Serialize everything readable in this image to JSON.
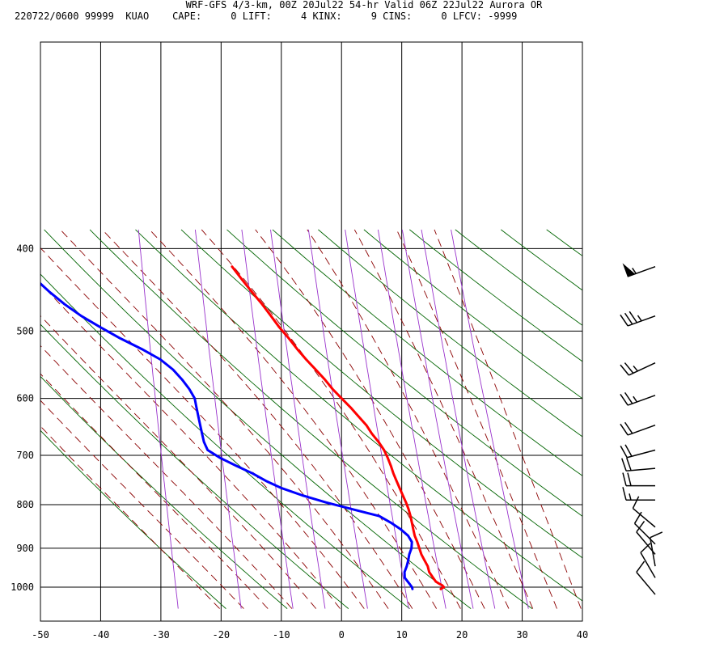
{
  "header": {
    "line1": "WRF-GFS 4/3-km, 00Z 20Jul22 54-hr Valid 06Z 22Jul22 Aurora OR",
    "line2": "220722/0600 99999  KUAO    CAPE:     0 LIFT:     4 KINX:     9 CINS:     0 LFCV: -9999"
  },
  "chart_data": {
    "type": "line",
    "title": "WRF-GFS 4/3-km, 00Z 20Jul22 54-hr Valid 06Z 22Jul22 Aurora OR",
    "xlabel": "",
    "ylabel": "",
    "xlim": [
      -50,
      40
    ],
    "ylim": [
      1040,
      400
    ],
    "x_ticks": [
      -50,
      -40,
      -30,
      -20,
      -10,
      0,
      10,
      20,
      30,
      40
    ],
    "y_ticks": [
      400,
      500,
      600,
      700,
      800,
      900,
      1000
    ],
    "y_scale": "log",
    "grid": true,
    "colors": {
      "temperature": "#ff0000",
      "dewpoint": "#0000ff",
      "dry_adiabat": "#006400",
      "moist_adiabat": "#8b0000",
      "mixing_ratio": "#9932cc"
    },
    "series": [
      {
        "key": "temperature",
        "pressure": [
          1005,
          1000,
          995,
          990,
          985,
          975,
          960,
          945,
          930,
          915,
          900,
          885,
          870,
          855,
          840,
          825,
          810,
          795,
          780,
          765,
          750,
          735,
          720,
          705,
          690,
          675,
          660,
          645,
          630,
          615,
          600,
          585,
          570,
          555,
          540,
          525,
          510,
          495,
          480,
          465,
          450,
          435,
          420
        ],
        "values": [
          16.5,
          17,
          16.7,
          16.1,
          15.6,
          15.1,
          14.4,
          14.1,
          13.5,
          12.9,
          12.5,
          12.1,
          11.6,
          11.3,
          11.0,
          10.7,
          10.3,
          9.8,
          9.2,
          8.6,
          8.0,
          7.4,
          6.9,
          6.3,
          5.6,
          4.6,
          3.4,
          2.4,
          1.0,
          -0.4,
          -2.0,
          -3.6,
          -5.0,
          -6.6,
          -8.3,
          -9.9,
          -11.4,
          -13.1,
          -14.6,
          -16.2,
          -18.0,
          -19.8,
          -21.6
        ]
      },
      {
        "key": "dewpoint",
        "pressure": [
          1005,
          1000,
          990,
          975,
          960,
          945,
          930,
          915,
          900,
          885,
          870,
          855,
          840,
          825,
          810,
          795,
          780,
          765,
          750,
          735,
          720,
          705,
          690,
          675,
          660,
          645,
          630,
          615,
          600,
          585,
          570,
          555,
          540,
          525,
          510,
          495,
          480,
          465,
          450,
          435,
          420,
          410
        ],
        "values": [
          11.8,
          11.7,
          11.2,
          10.4,
          10.3,
          10.6,
          10.8,
          10.9,
          11.2,
          11.2,
          10.5,
          9.2,
          7.5,
          5.5,
          1.0,
          -3.5,
          -7.5,
          -11.0,
          -13.7,
          -16.0,
          -18.8,
          -21.5,
          -23.7,
          -24.4,
          -24.8,
          -25.2,
          -25.6,
          -26.0,
          -26.4,
          -27.4,
          -28.7,
          -30.3,
          -32.5,
          -35.7,
          -39.4,
          -42.8,
          -46.1,
          -49.0,
          -51.6,
          -54.0,
          -56.6,
          -58.1
        ]
      }
    ],
    "wind_barbs": [
      {
        "pressure": 420,
        "direction": 250,
        "speed": 55
      },
      {
        "pressure": 480,
        "direction": 250,
        "speed": 35
      },
      {
        "pressure": 545,
        "direction": 245,
        "speed": 25
      },
      {
        "pressure": 595,
        "direction": 250,
        "speed": 25
      },
      {
        "pressure": 645,
        "direction": 250,
        "speed": 20
      },
      {
        "pressure": 690,
        "direction": 255,
        "speed": 20
      },
      {
        "pressure": 725,
        "direction": 265,
        "speed": 20
      },
      {
        "pressure": 760,
        "direction": 270,
        "speed": 20
      },
      {
        "pressure": 790,
        "direction": 270,
        "speed": 15
      },
      {
        "pressure": 850,
        "direction": 310,
        "speed": 10
      },
      {
        "pressure": 890,
        "direction": 315,
        "speed": 10
      },
      {
        "pressure": 915,
        "direction": 320,
        "speed": 10
      },
      {
        "pressure": 945,
        "direction": 350,
        "speed": 10
      },
      {
        "pressure": 975,
        "direction": 330,
        "speed": 10
      },
      {
        "pressure": 1020,
        "direction": 320,
        "speed": 10
      }
    ]
  }
}
